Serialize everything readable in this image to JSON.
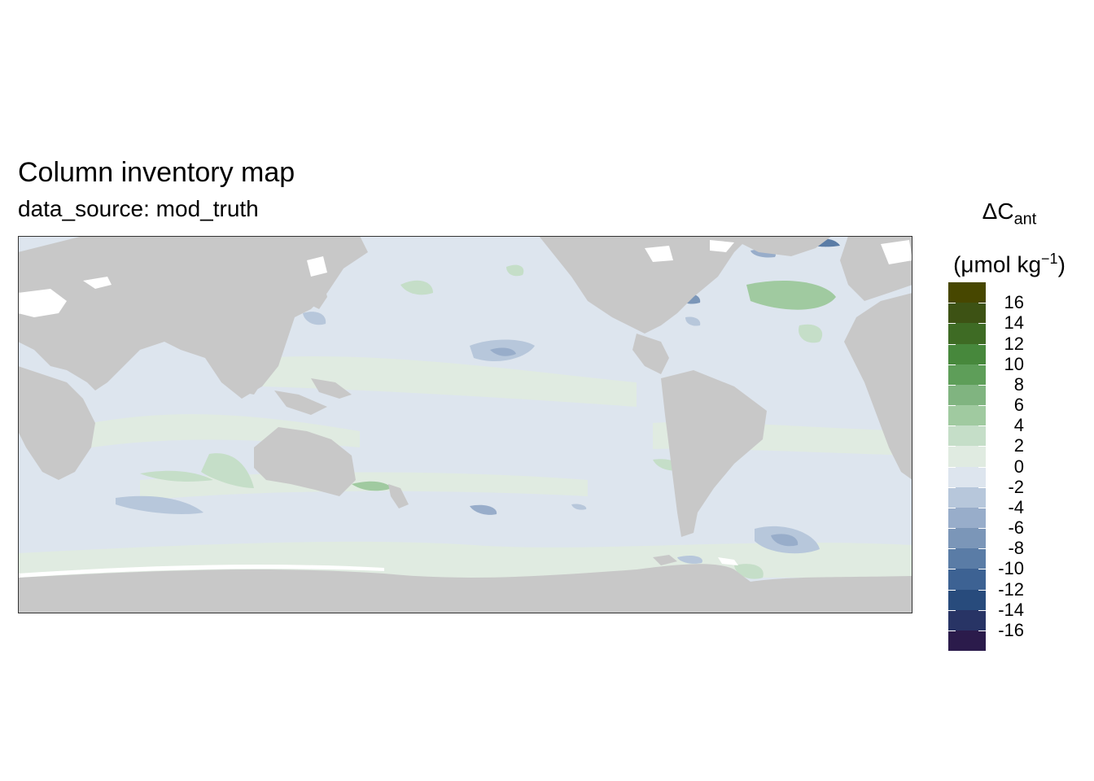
{
  "title": "Column inventory map",
  "subtitle": "data_source: mod_truth",
  "legend": {
    "symbol": "ΔC",
    "subscript": "ant",
    "unit_open": "(μmol kg",
    "unit_sup": "−1",
    "unit_close": ")",
    "labels": [
      "16",
      "14",
      "12",
      "10",
      "8",
      "6",
      "4",
      "2",
      "0",
      "-2",
      "-4",
      "-6",
      "-8",
      "-10",
      "-12",
      "-14",
      "-16"
    ],
    "colors": [
      "#474700",
      "#3d5214",
      "#3e6b24",
      "#47883c",
      "#5e9e59",
      "#80b480",
      "#a0caa0",
      "#c5dec8",
      "#e0ebe1",
      "#dde5ee",
      "#b7c7db",
      "#98adca",
      "#7b96b8",
      "#5a7ca6",
      "#3d6293",
      "#284b7c",
      "#283465",
      "#2b1b4b"
    ]
  },
  "map": {
    "land_color": "#c8c8c8",
    "ocean_base_color": "#dde5ee",
    "frame_color": "#333333"
  }
}
